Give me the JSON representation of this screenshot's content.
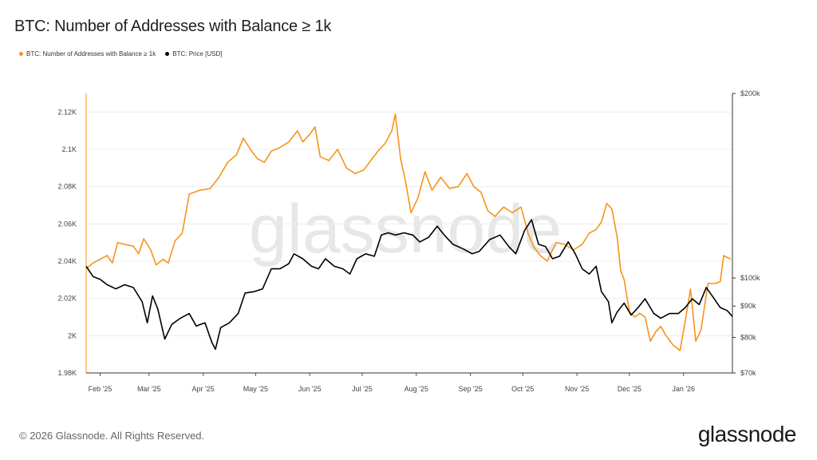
{
  "header": {
    "title": "BTC: Number of Addresses with Balance ≥ 1k"
  },
  "legend": [
    {
      "label": "BTC: Number of Addresses with Balance ≥ 1k",
      "color": "#f7931a"
    },
    {
      "label": "BTC: Price [USD]",
      "color": "#000000"
    }
  ],
  "footer": {
    "copyright": "© 2026 Glassnode. All Rights Reserved.",
    "logo": "glassnode"
  },
  "watermark": "glassnode",
  "chart_data": {
    "type": "line",
    "x_ticks": [
      "Feb '25",
      "Mar '25",
      "Apr '25",
      "May '25",
      "Jun '25",
      "Jul '25",
      "Aug '25",
      "Sep '25",
      "Oct '25",
      "Nov '25",
      "Dec '25",
      "Jan '26"
    ],
    "y_left_ticks": [
      "1.98K",
      "2K",
      "2.02K",
      "2.04K",
      "2.06K",
      "2.08K",
      "2.1K",
      "2.12K"
    ],
    "y_right_ticks": [
      "$70k",
      "$80k",
      "$90k",
      "$100k",
      "$200k"
    ],
    "y_left_range": [
      1980,
      2130
    ],
    "y_right_range": [
      70000,
      200000
    ],
    "y_right_scale": "log",
    "x_range": [
      "2025-01-24",
      "2026-01-29"
    ],
    "grid": true,
    "series": [
      {
        "name": "BTC: Number of Addresses with Balance ≥ 1k",
        "axis": "left",
        "color": "#f7931a",
        "points": [
          [
            "2025-01-24",
            2036
          ],
          [
            "2025-01-28",
            2039
          ],
          [
            "2025-02-01",
            2041
          ],
          [
            "2025-02-05",
            2043
          ],
          [
            "2025-02-08",
            2039
          ],
          [
            "2025-02-11",
            2050
          ],
          [
            "2025-02-15",
            2049
          ],
          [
            "2025-02-20",
            2048
          ],
          [
            "2025-02-23",
            2044
          ],
          [
            "2025-02-26",
            2052
          ],
          [
            "2025-03-02",
            2046
          ],
          [
            "2025-03-05",
            2038
          ],
          [
            "2025-03-09",
            2041
          ],
          [
            "2025-03-12",
            2039
          ],
          [
            "2025-03-16",
            2051
          ],
          [
            "2025-03-20",
            2055
          ],
          [
            "2025-03-24",
            2076
          ],
          [
            "2025-03-30",
            2078
          ],
          [
            "2025-04-05",
            2079
          ],
          [
            "2025-04-10",
            2085
          ],
          [
            "2025-04-15",
            2093
          ],
          [
            "2025-04-20",
            2097
          ],
          [
            "2025-04-24",
            2106
          ],
          [
            "2025-04-28",
            2100
          ],
          [
            "2025-05-02",
            2095
          ],
          [
            "2025-05-06",
            2093
          ],
          [
            "2025-05-10",
            2099
          ],
          [
            "2025-05-15",
            2101
          ],
          [
            "2025-05-20",
            2104
          ],
          [
            "2025-05-25",
            2110
          ],
          [
            "2025-05-28",
            2104
          ],
          [
            "2025-06-01",
            2108
          ],
          [
            "2025-06-04",
            2112
          ],
          [
            "2025-06-07",
            2096
          ],
          [
            "2025-06-12",
            2094
          ],
          [
            "2025-06-17",
            2100
          ],
          [
            "2025-06-22",
            2090
          ],
          [
            "2025-06-27",
            2087
          ],
          [
            "2025-07-02",
            2089
          ],
          [
            "2025-07-06",
            2094
          ],
          [
            "2025-07-10",
            2099
          ],
          [
            "2025-07-14",
            2103
          ],
          [
            "2025-07-18",
            2110
          ],
          [
            "2025-07-20",
            2119
          ],
          [
            "2025-07-23",
            2095
          ],
          [
            "2025-07-26",
            2082
          ],
          [
            "2025-07-29",
            2066
          ],
          [
            "2025-08-02",
            2074
          ],
          [
            "2025-08-06",
            2088
          ],
          [
            "2025-08-10",
            2078
          ],
          [
            "2025-08-15",
            2085
          ],
          [
            "2025-08-20",
            2079
          ],
          [
            "2025-08-25",
            2080
          ],
          [
            "2025-08-30",
            2087
          ],
          [
            "2025-09-03",
            2080
          ],
          [
            "2025-09-07",
            2077
          ],
          [
            "2025-09-11",
            2067
          ],
          [
            "2025-09-15",
            2064
          ],
          [
            "2025-09-20",
            2069
          ],
          [
            "2025-09-25",
            2066
          ],
          [
            "2025-09-30",
            2069
          ],
          [
            "2025-10-04",
            2055
          ],
          [
            "2025-10-07",
            2048
          ],
          [
            "2025-10-11",
            2043
          ],
          [
            "2025-10-15",
            2040
          ],
          [
            "2025-10-20",
            2050
          ],
          [
            "2025-10-25",
            2049
          ],
          [
            "2025-10-30",
            2046
          ],
          [
            "2025-11-04",
            2049
          ],
          [
            "2025-11-08",
            2055
          ],
          [
            "2025-11-12",
            2057
          ],
          [
            "2025-11-15",
            2061
          ],
          [
            "2025-11-18",
            2071
          ],
          [
            "2025-11-21",
            2068
          ],
          [
            "2025-11-24",
            2053
          ],
          [
            "2025-11-26",
            2035
          ],
          [
            "2025-11-28",
            2030
          ],
          [
            "2025-12-01",
            2013
          ],
          [
            "2025-12-04",
            2010
          ],
          [
            "2025-12-07",
            2012
          ],
          [
            "2025-12-10",
            2010
          ],
          [
            "2025-12-13",
            1997
          ],
          [
            "2025-12-16",
            2002
          ],
          [
            "2025-12-19",
            2005
          ],
          [
            "2025-12-22",
            2000
          ],
          [
            "2025-12-26",
            1995
          ],
          [
            "2025-12-30",
            1992
          ],
          [
            "2026-01-02",
            2008
          ],
          [
            "2026-01-05",
            2025
          ],
          [
            "2026-01-08",
            1997
          ],
          [
            "2026-01-11",
            2003
          ],
          [
            "2026-01-15",
            2028
          ],
          [
            "2026-01-19",
            2028
          ],
          [
            "2026-01-22",
            2029
          ],
          [
            "2026-01-24",
            2043
          ],
          [
            "2026-01-28",
            2041
          ]
        ]
      },
      {
        "name": "BTC: Price [USD]",
        "axis": "right",
        "color": "#000000",
        "points": [
          [
            "2025-01-24",
            104500
          ],
          [
            "2025-01-28",
            100500
          ],
          [
            "2025-02-01",
            99500
          ],
          [
            "2025-02-05",
            97500
          ],
          [
            "2025-02-10",
            96000
          ],
          [
            "2025-02-15",
            97500
          ],
          [
            "2025-02-20",
            96500
          ],
          [
            "2025-02-25",
            91500
          ],
          [
            "2025-02-28",
            84500
          ],
          [
            "2025-03-03",
            93500
          ],
          [
            "2025-03-06",
            89000
          ],
          [
            "2025-03-10",
            79500
          ],
          [
            "2025-03-14",
            84000
          ],
          [
            "2025-03-19",
            86000
          ],
          [
            "2025-03-24",
            87500
          ],
          [
            "2025-03-28",
            83500
          ],
          [
            "2025-04-02",
            84500
          ],
          [
            "2025-04-06",
            78500
          ],
          [
            "2025-04-08",
            76500
          ],
          [
            "2025-04-11",
            83000
          ],
          [
            "2025-04-16",
            84500
          ],
          [
            "2025-04-21",
            87500
          ],
          [
            "2025-04-25",
            94500
          ],
          [
            "2025-04-30",
            95000
          ],
          [
            "2025-05-05",
            96000
          ],
          [
            "2025-05-10",
            103500
          ],
          [
            "2025-05-15",
            103500
          ],
          [
            "2025-05-20",
            105500
          ],
          [
            "2025-05-23",
            109500
          ],
          [
            "2025-05-28",
            107500
          ],
          [
            "2025-06-02",
            104500
          ],
          [
            "2025-06-06",
            103500
          ],
          [
            "2025-06-10",
            107500
          ],
          [
            "2025-06-15",
            104500
          ],
          [
            "2025-06-20",
            103500
          ],
          [
            "2025-06-24",
            101500
          ],
          [
            "2025-06-28",
            107500
          ],
          [
            "2025-07-03",
            109500
          ],
          [
            "2025-07-08",
            108500
          ],
          [
            "2025-07-12",
            117500
          ],
          [
            "2025-07-16",
            118500
          ],
          [
            "2025-07-20",
            117500
          ],
          [
            "2025-07-25",
            118500
          ],
          [
            "2025-07-30",
            117500
          ],
          [
            "2025-08-03",
            114500
          ],
          [
            "2025-08-08",
            116500
          ],
          [
            "2025-08-13",
            121500
          ],
          [
            "2025-08-17",
            117500
          ],
          [
            "2025-08-22",
            113500
          ],
          [
            "2025-08-28",
            111500
          ],
          [
            "2025-09-02",
            109500
          ],
          [
            "2025-09-06",
            110500
          ],
          [
            "2025-09-12",
            115500
          ],
          [
            "2025-09-18",
            117500
          ],
          [
            "2025-09-23",
            112500
          ],
          [
            "2025-09-27",
            109500
          ],
          [
            "2025-10-02",
            119500
          ],
          [
            "2025-10-06",
            124500
          ],
          [
            "2025-10-10",
            113500
          ],
          [
            "2025-10-14",
            112500
          ],
          [
            "2025-10-18",
            107500
          ],
          [
            "2025-10-22",
            108500
          ],
          [
            "2025-10-27",
            114500
          ],
          [
            "2025-10-31",
            109500
          ],
          [
            "2025-11-04",
            103500
          ],
          [
            "2025-11-08",
            101500
          ],
          [
            "2025-11-12",
            104500
          ],
          [
            "2025-11-15",
            95000
          ],
          [
            "2025-11-19",
            91500
          ],
          [
            "2025-11-21",
            84500
          ],
          [
            "2025-11-24",
            88000
          ],
          [
            "2025-11-28",
            91000
          ],
          [
            "2025-12-02",
            87000
          ],
          [
            "2025-12-06",
            89500
          ],
          [
            "2025-12-10",
            92500
          ],
          [
            "2025-12-15",
            87500
          ],
          [
            "2025-12-19",
            86000
          ],
          [
            "2025-12-24",
            87500
          ],
          [
            "2025-12-29",
            87500
          ],
          [
            "2026-01-02",
            89500
          ],
          [
            "2026-01-06",
            92500
          ],
          [
            "2026-01-10",
            90500
          ],
          [
            "2026-01-14",
            96500
          ],
          [
            "2026-01-18",
            93000
          ],
          [
            "2026-01-22",
            89500
          ],
          [
            "2026-01-26",
            88500
          ],
          [
            "2026-01-29",
            86500
          ]
        ]
      }
    ]
  }
}
